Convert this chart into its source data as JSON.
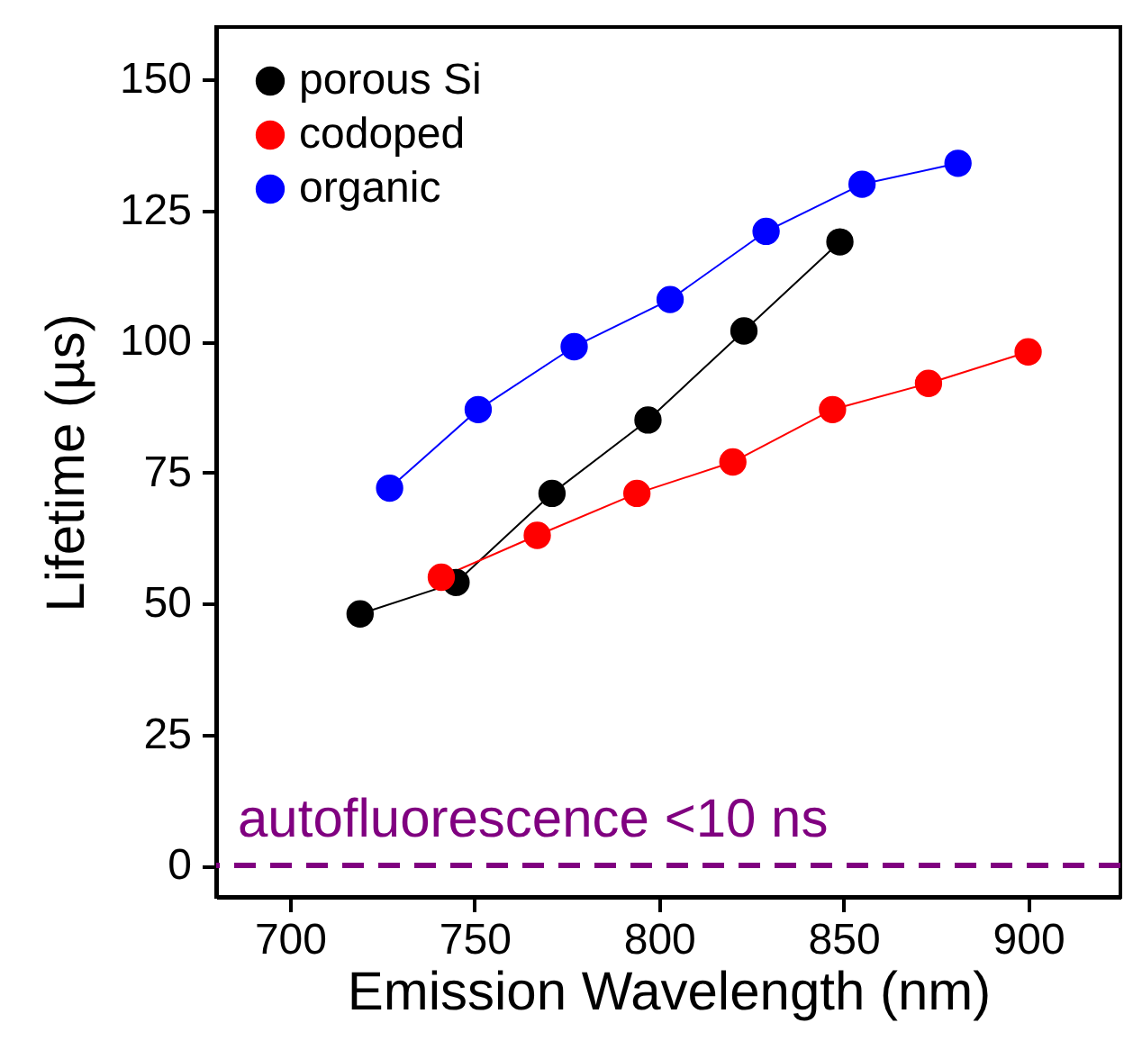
{
  "chart_data": {
    "type": "line",
    "xlabel": "Emission Wavelength (nm)",
    "ylabel": "Lifetime (µs)",
    "xlim": [
      680,
      925
    ],
    "xticks": [
      700,
      750,
      800,
      850,
      900
    ],
    "ylim": [
      -6,
      160
    ],
    "yticks": [
      0,
      25,
      50,
      75,
      100,
      125,
      150
    ],
    "grid": false,
    "legend": "top left",
    "marker": "circle",
    "line_style": "solid",
    "series": [
      {
        "name": "porous Si",
        "color": "#000000",
        "x": [
          719,
          745,
          771,
          797,
          823,
          849
        ],
        "values": [
          48,
          54,
          71,
          85,
          102,
          119
        ]
      },
      {
        "name": "codoped",
        "color": "#ff0000",
        "x": [
          741,
          767,
          794,
          820,
          847,
          873,
          900
        ],
        "values": [
          55,
          63,
          71,
          77,
          87,
          92,
          98
        ]
      },
      {
        "name": "organic",
        "color": "#0000ff",
        "x": [
          727,
          751,
          777,
          803,
          829,
          855,
          881
        ],
        "values": [
          72,
          87,
          99,
          108,
          121,
          130,
          134
        ]
      }
    ],
    "ref_lines": [
      {
        "axis": "y",
        "value": 0,
        "label": "autofluorescence <10 ns",
        "color": "#800080",
        "line_style": "dashed"
      }
    ]
  }
}
